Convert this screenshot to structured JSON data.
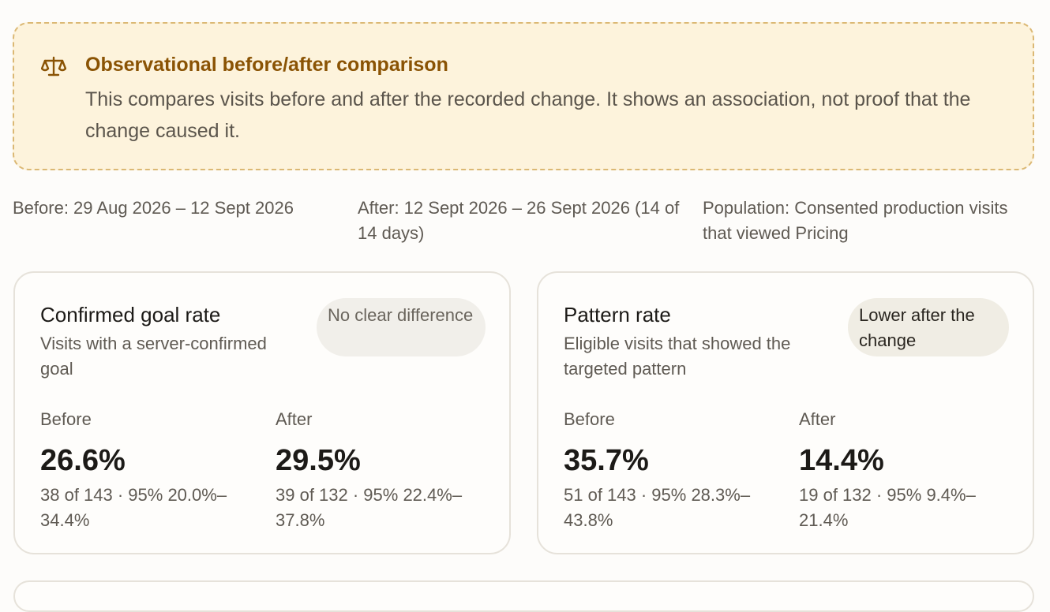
{
  "notice": {
    "icon": "scale-icon",
    "title": "Observational before/after comparison",
    "body": "This compares visits before and after the recorded change. It shows an association, not proof that the change caused it."
  },
  "meta": {
    "before": "Before: 29 Aug 2026 – 12 Sept 2026",
    "after": "After: 12 Sept 2026 – 26 Sept 2026 (14 of 14 days)",
    "population": "Population: Consented production visits that viewed Pricing"
  },
  "cards": [
    {
      "title": "Confirmed goal rate",
      "subtitle": "Visits with a server-confirmed goal",
      "badge": "No clear difference",
      "before_label": "Before",
      "before_value": "26.6%",
      "before_detail": "38 of 143 · 95% 20.0%–34.4%",
      "after_label": "After",
      "after_value": "29.5%",
      "after_detail": "39 of 132 · 95% 22.4%–37.8%"
    },
    {
      "title": "Pattern rate",
      "subtitle": "Eligible visits that showed the targeted pattern",
      "badge": "Lower after the change",
      "before_label": "Before",
      "before_value": "35.7%",
      "before_detail": "51 of 143 · 95% 28.3%–43.8%",
      "after_label": "After",
      "after_value": "14.4%",
      "after_detail": "19 of 132 · 95% 9.4%–21.4%"
    }
  ],
  "colors": {
    "notice_bg": "#fdf3dc",
    "notice_border": "#dbb874",
    "notice_title": "#8a5304"
  }
}
